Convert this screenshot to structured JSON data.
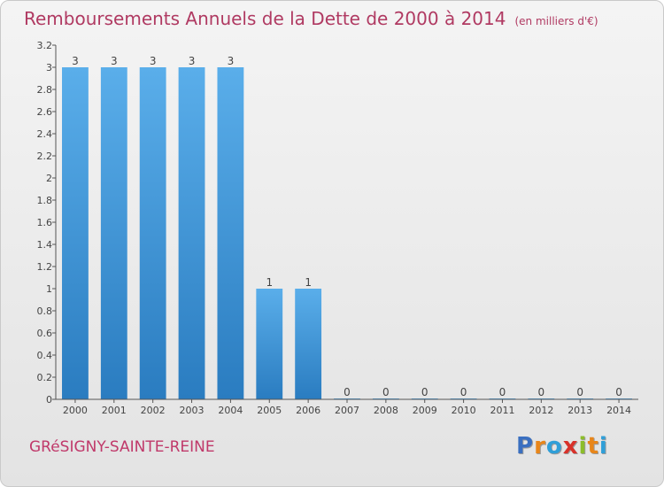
{
  "title": "Remboursements Annuels de la Dette de 2000 à 2014",
  "unit_label": "(en milliers d'€)",
  "commune": "GRéSIGNY-SAINTE-REINE",
  "brand": {
    "letters": [
      "P",
      "r",
      "o",
      "x",
      "i",
      "t",
      "i"
    ],
    "colors": [
      "#3a6fc0",
      "#e8861a",
      "#2f9fd8",
      "#d8322a",
      "#8cbd2a",
      "#e8861a",
      "#2f9fd8"
    ]
  },
  "chart_data": {
    "type": "bar",
    "categories": [
      "2000",
      "2001",
      "2002",
      "2003",
      "2004",
      "2005",
      "2006",
      "2007",
      "2008",
      "2009",
      "2010",
      "2011",
      "2012",
      "2013",
      "2014"
    ],
    "values": [
      3,
      3,
      3,
      3,
      3,
      1,
      1,
      0,
      0,
      0,
      0,
      0,
      0,
      0,
      0
    ],
    "data_labels": [
      "3",
      "3",
      "3",
      "3",
      "3",
      "1",
      "1",
      "0",
      "0",
      "0",
      "0",
      "0",
      "0",
      "0",
      "0"
    ],
    "ylim": [
      0,
      3.2
    ],
    "y_ticks": [
      {
        "value": 0,
        "label": "0"
      },
      {
        "value": 0.2,
        "label": "0.2"
      },
      {
        "value": 0.4,
        "label": "0.4"
      },
      {
        "value": 0.6,
        "label": "0.6"
      },
      {
        "value": 0.8,
        "label": "0.8"
      },
      {
        "value": 1,
        "label": "1"
      },
      {
        "value": 1.2,
        "label": "1.2"
      },
      {
        "value": 1.4,
        "label": "1.4"
      },
      {
        "value": 1.6,
        "label": "1.6"
      },
      {
        "value": 1.8,
        "label": "1.8"
      },
      {
        "value": 2,
        "label": "2"
      },
      {
        "value": 2.2,
        "label": "2.2"
      },
      {
        "value": 2.4,
        "label": "2.4"
      },
      {
        "value": 2.6,
        "label": "2.6"
      },
      {
        "value": 2.8,
        "label": "2.8"
      },
      {
        "value": 3,
        "label": "3"
      },
      {
        "value": 3.2,
        "label": "3.2"
      }
    ],
    "grid": false,
    "bar_color_top": "#5aaeea",
    "bar_color_bottom": "#2a7cc0",
    "axis_color": "#555555",
    "label_color": "#444444"
  }
}
